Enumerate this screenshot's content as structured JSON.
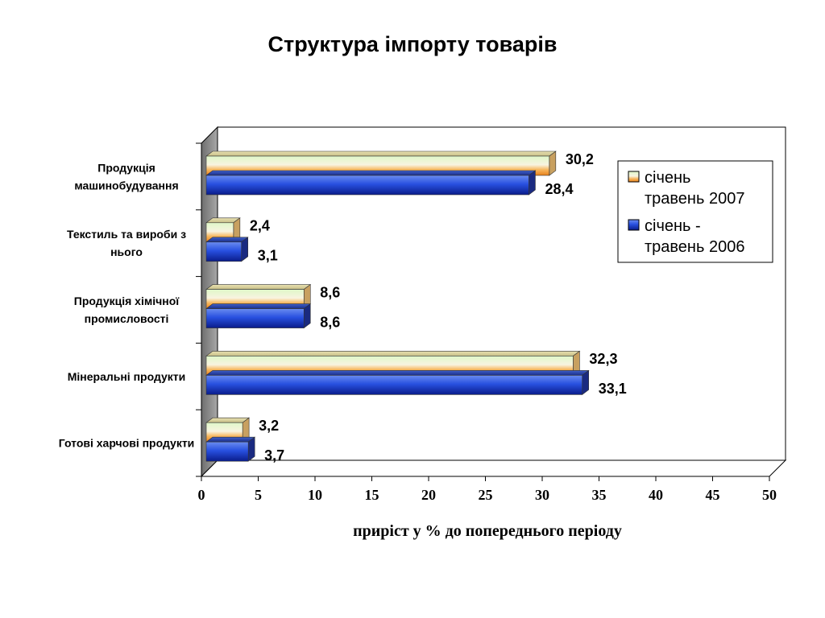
{
  "chart_data": {
    "type": "bar",
    "orientation": "horizontal",
    "title": "Структура імпорту товарів",
    "xlabel": "приріст у % до попереднього періоду",
    "ylabel": "",
    "xlim": [
      0,
      50
    ],
    "ticks": [
      "0",
      "5",
      "10",
      "15",
      "20",
      "25",
      "30",
      "35",
      "40",
      "45",
      "50"
    ],
    "categories": [
      [
        "Продукція",
        "машинобудування"
      ],
      [
        "Текстиль та вироби з",
        "нього"
      ],
      [
        "Продукція хімічної",
        "промисловості"
      ],
      [
        "Мінеральні продукти"
      ],
      [
        "Готові харчові продукти"
      ]
    ],
    "series": [
      {
        "name": [
          "січень",
          "травень 2007"
        ],
        "values": [
          30.2,
          2.4,
          8.6,
          32.3,
          3.2
        ],
        "labels": [
          "30,2",
          "2,4",
          "8,6",
          "32,3",
          "3,2"
        ],
        "color": "#f08a20"
      },
      {
        "name": [
          "січень -",
          "травень 2006"
        ],
        "values": [
          28.4,
          3.1,
          8.6,
          33.1,
          3.7
        ],
        "labels": [
          "28,4",
          "3,1",
          "8,6",
          "33,1",
          "3,7"
        ],
        "color": "#2040c8"
      }
    ],
    "legend": "right",
    "grid": false
  }
}
